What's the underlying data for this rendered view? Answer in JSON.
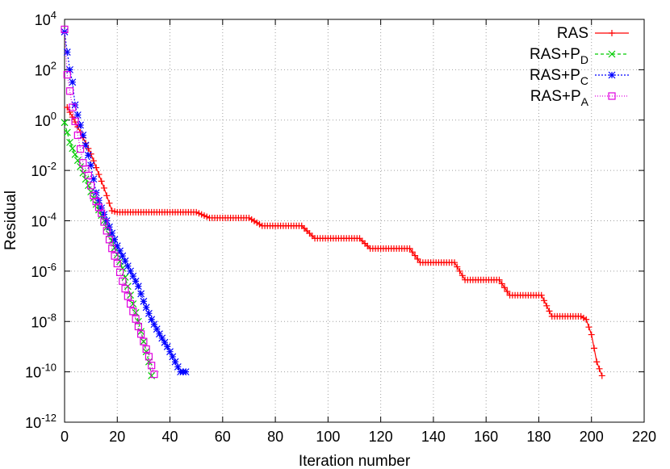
{
  "chart_data": {
    "type": "line",
    "title": "",
    "xlabel": "Iteration number",
    "ylabel": "Residual",
    "xlim": [
      0,
      220
    ],
    "ylim_log10": [
      -12,
      4
    ],
    "yscale": "log",
    "grid": true,
    "legend_position": "top-right",
    "x_ticks": [
      "0",
      "20",
      "40",
      "60",
      "80",
      "100",
      "120",
      "140",
      "160",
      "180",
      "200",
      "220"
    ],
    "y_ticks": [
      {
        "base": "10",
        "exp": "4"
      },
      {
        "base": "10",
        "exp": "2"
      },
      {
        "base": "10",
        "exp": "0"
      },
      {
        "base": "10",
        "exp": "-2"
      },
      {
        "base": "10",
        "exp": "-4"
      },
      {
        "base": "10",
        "exp": "-6"
      },
      {
        "base": "10",
        "exp": "-8"
      },
      {
        "base": "10",
        "exp": "-10"
      },
      {
        "base": "10",
        "exp": "-12"
      }
    ],
    "series": [
      {
        "name": "RAS",
        "name_main": "RAS",
        "name_sub": "",
        "color": "#ff0000",
        "marker": "plus",
        "dash": "",
        "points": [
          [
            1,
            3.2
          ],
          [
            5,
            0.54
          ],
          [
            10,
            0.045
          ],
          [
            15,
            0.002
          ],
          [
            18,
            0.00025
          ],
          [
            20,
            0.00022
          ],
          [
            50,
            0.00022
          ],
          [
            55,
            0.00013
          ],
          [
            70,
            0.00013
          ],
          [
            75,
            6.3e-05
          ],
          [
            90,
            6.3e-05
          ],
          [
            95,
            2e-05
          ],
          [
            112,
            2e-05
          ],
          [
            116,
            7.9e-06
          ],
          [
            131,
            7.9e-06
          ],
          [
            135,
            2.2e-06
          ],
          [
            148,
            2.2e-06
          ],
          [
            152,
            4.5e-07
          ],
          [
            165,
            4.5e-07
          ],
          [
            169,
            1.1e-07
          ],
          [
            181,
            1.1e-07
          ],
          [
            185,
            1.6e-08
          ],
          [
            196,
            1.6e-08
          ],
          [
            198,
            1.2e-08
          ],
          [
            200,
            3e-09
          ],
          [
            202,
            2.5e-10
          ],
          [
            204,
            7e-11
          ]
        ]
      },
      {
        "name": "RAS+PD",
        "name_main": "RAS+P",
        "name_sub": "D",
        "color": "#00cc00",
        "marker": "x",
        "dash": "4,3",
        "points": [
          [
            0,
            0.8
          ],
          [
            2,
            0.13
          ],
          [
            5,
            0.025
          ],
          [
            8,
            0.0045
          ],
          [
            12,
            0.00045
          ],
          [
            15,
            0.0001
          ],
          [
            18,
            1.6e-05
          ],
          [
            20,
            4.5e-06
          ],
          [
            22,
            1.3e-06
          ],
          [
            24,
            2.5e-07
          ],
          [
            26,
            5e-08
          ],
          [
            28,
            1e-08
          ],
          [
            30,
            1.6e-09
          ],
          [
            32,
            2.5e-10
          ],
          [
            33,
            7e-11
          ]
        ]
      },
      {
        "name": "RAS+PC",
        "name_main": "RAS+P",
        "name_sub": "C",
        "color": "#0000ff",
        "marker": "star",
        "dash": "2,2",
        "points": [
          [
            0,
            3200.0
          ],
          [
            1,
            500.0
          ],
          [
            2,
            100.0
          ],
          [
            3,
            32.0
          ],
          [
            4,
            4.0
          ],
          [
            6,
            0.63
          ],
          [
            8,
            0.1
          ],
          [
            10,
            0.016
          ],
          [
            12,
            0.0013
          ],
          [
            14,
            0.00032
          ],
          [
            16,
            0.0001
          ],
          [
            18,
            3.2e-05
          ],
          [
            20,
            1e-05
          ],
          [
            22,
            4e-06
          ],
          [
            25,
            1e-06
          ],
          [
            28,
            2.5e-07
          ],
          [
            30,
            6.3e-08
          ],
          [
            33,
            1.2e-08
          ],
          [
            36,
            3.2e-09
          ],
          [
            39,
            1e-09
          ],
          [
            42,
            2.5e-10
          ],
          [
            44,
            1e-10
          ],
          [
            46,
            1e-10
          ]
        ]
      },
      {
        "name": "RAS+PA",
        "name_main": "RAS+P",
        "name_sub": "A",
        "color": "#e000e0",
        "marker": "square",
        "dash": "1,2",
        "points": [
          [
            0,
            4000.0
          ],
          [
            1,
            63.0
          ],
          [
            3,
            3.2
          ],
          [
            5,
            0.25
          ],
          [
            7,
            0.02
          ],
          [
            9,
            0.0063
          ],
          [
            11,
            0.001
          ],
          [
            14,
            0.0002
          ],
          [
            16,
            4e-05
          ],
          [
            18,
            8e-06
          ],
          [
            20,
            2e-06
          ],
          [
            22,
            4e-07
          ],
          [
            24,
            1e-07
          ],
          [
            26,
            2.5e-08
          ],
          [
            28,
            6.3e-09
          ],
          [
            30,
            1.6e-09
          ],
          [
            32,
            4e-10
          ],
          [
            34,
            8e-11
          ]
        ]
      }
    ]
  }
}
